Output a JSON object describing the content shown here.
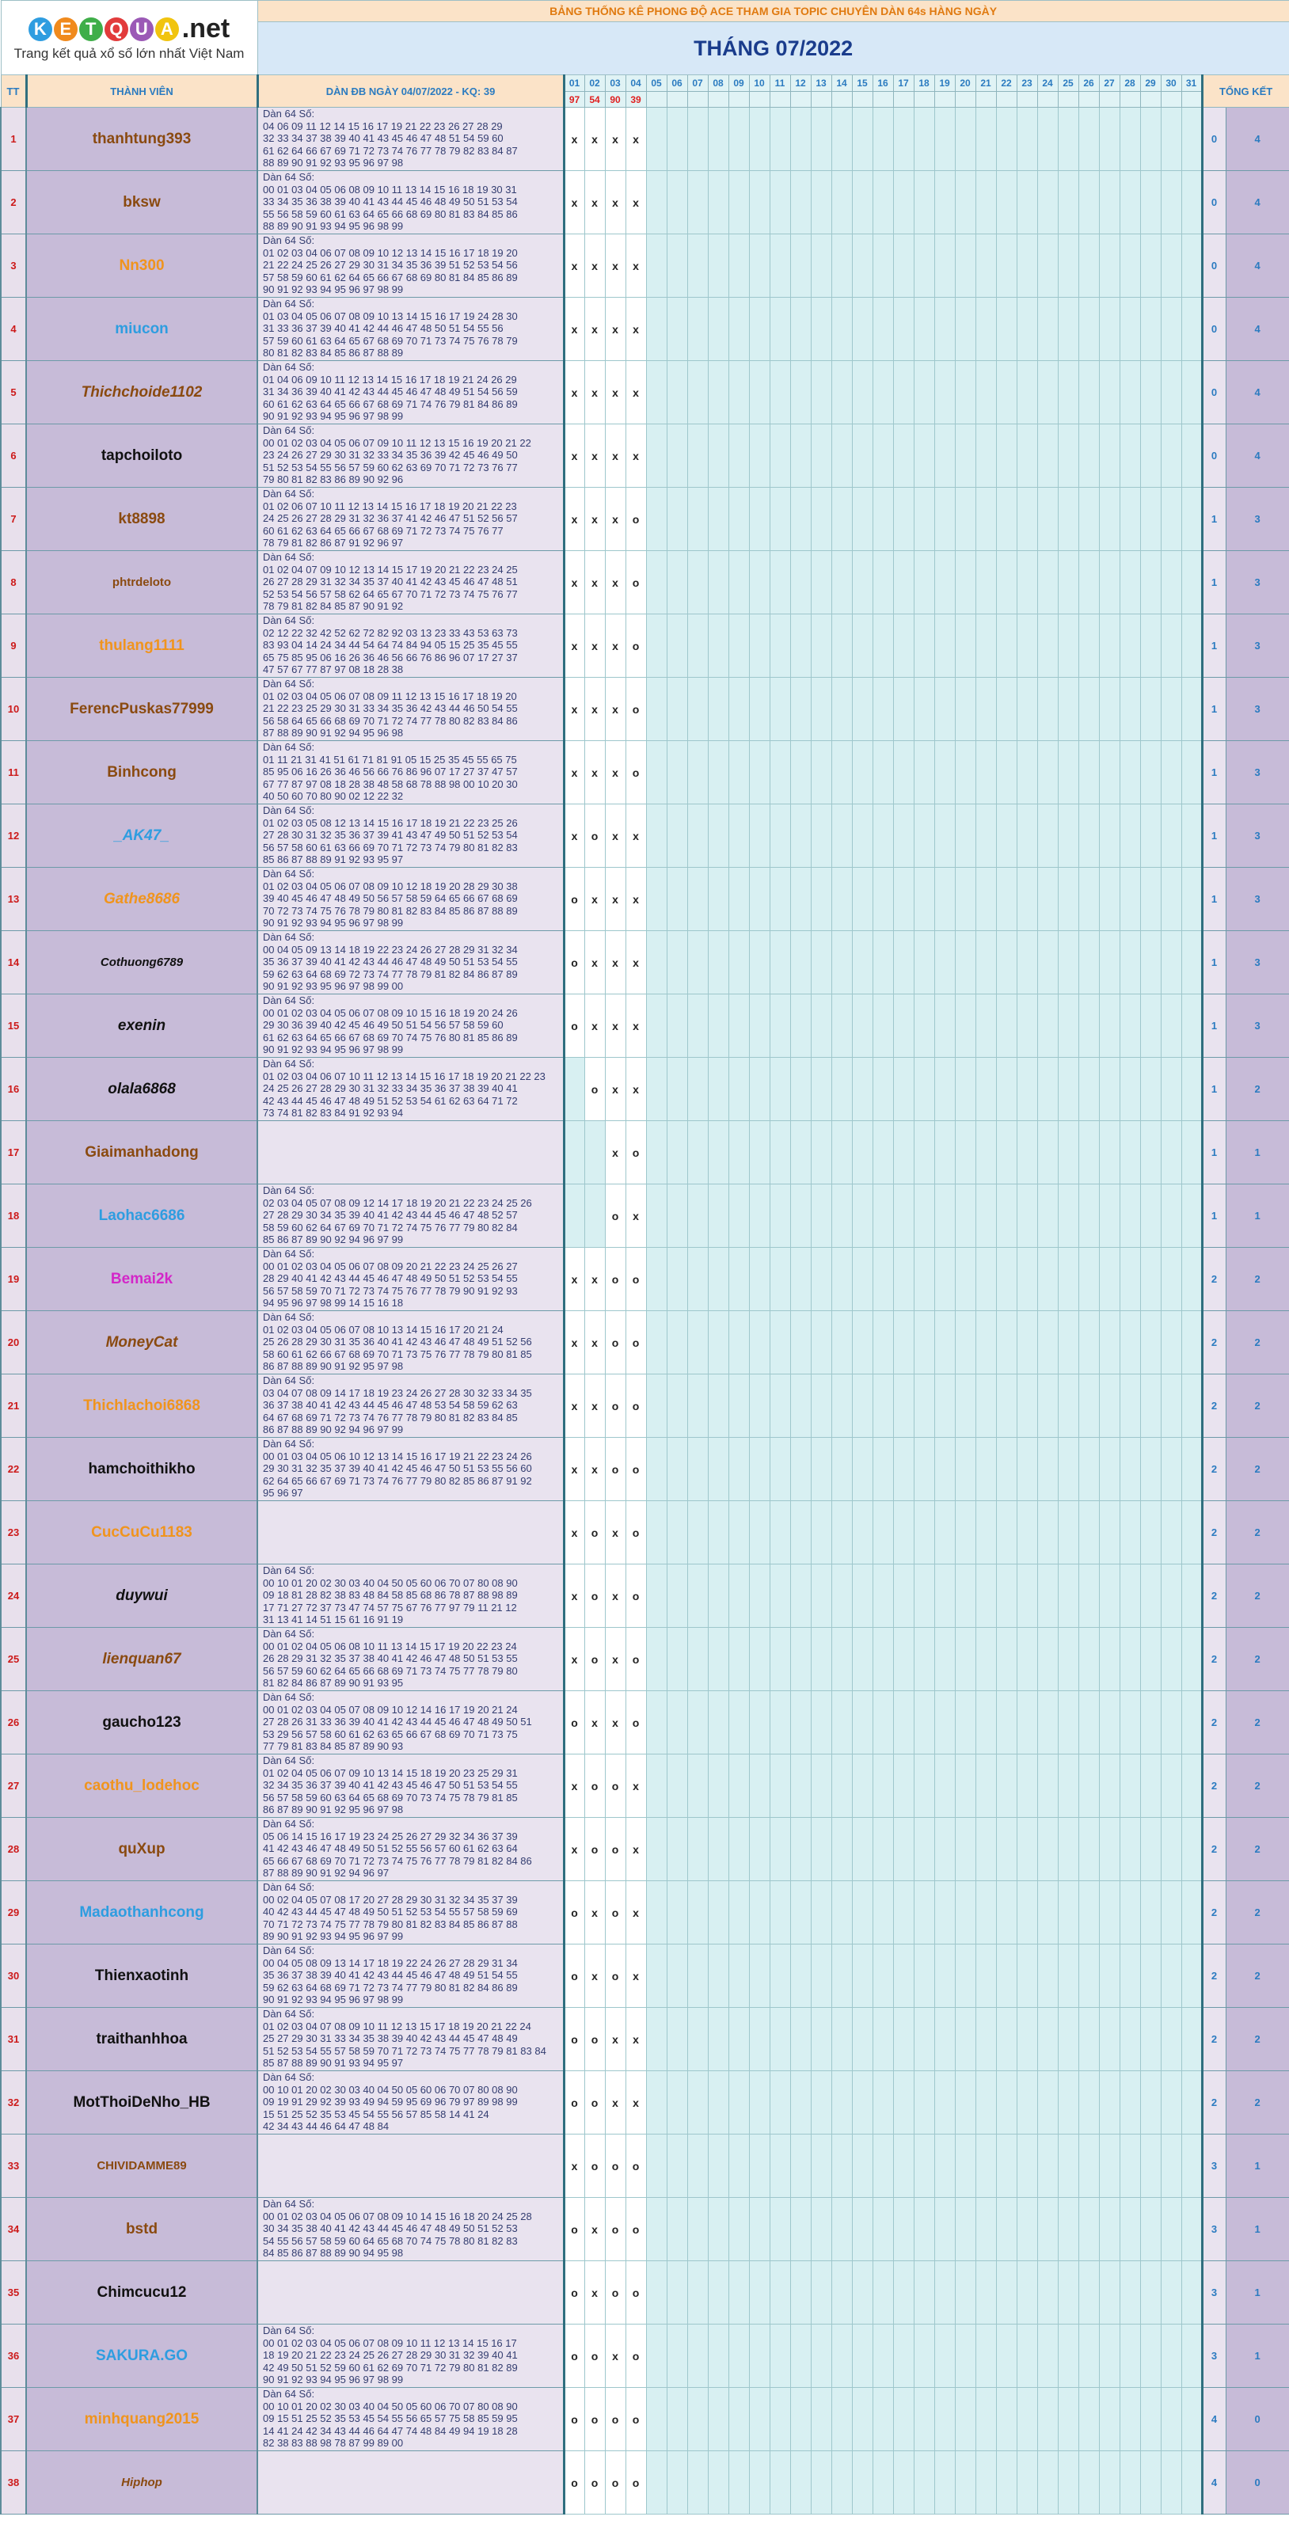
{
  "site": {
    "logo_letters": [
      "K",
      "E",
      "T",
      "Q",
      "U",
      "A"
    ],
    "logo_colors": [
      "#2e9de0",
      "#f08a1d",
      "#3fae49",
      "#e23b3b",
      "#9b59b6",
      "#f1c40f"
    ],
    "logo_suffix": ".net",
    "tagline": "Trang kết quả xổ số lớn nhất Việt Nam"
  },
  "header": {
    "banner": "BẢNG THỐNG KÊ PHONG ĐỘ ACE THAM GIA TOPIC CHUYÊN DÀN 64s HÀNG NGÀY",
    "month_title": "THÁNG 07/2022",
    "col_tt": "TT",
    "col_member": "THÀNH VIÊN",
    "col_dan": "DÀN ĐB NGÀY 04/07/2022 - KQ: 39",
    "col_total": "TỔNG KẾT",
    "days": [
      "01",
      "02",
      "03",
      "04",
      "05",
      "06",
      "07",
      "08",
      "09",
      "10",
      "11",
      "12",
      "13",
      "14",
      "15",
      "16",
      "17",
      "18",
      "19",
      "20",
      "21",
      "22",
      "23",
      "24",
      "25",
      "26",
      "27",
      "28",
      "29",
      "30",
      "31"
    ],
    "results": [
      "97",
      "54",
      "90",
      "39"
    ]
  },
  "rows": [
    {
      "tt": "1",
      "name": "thanhtung393",
      "color": "#8a4a10",
      "italic": false,
      "size": 19,
      "dan": [
        "Dàn 64 Số:",
        "04 06 09 11 12 14 15 16 17 19 21 22 23 26 27 28 29",
        "32 33 34 37 38 39 40 41 43 45 46 47 48 51 54 59 60",
        "61 62 64 66 67 69 71 72 73 74 76 77 78 79 82 83 84 87",
        "88 89 90 91 92 93 95 96 97 98"
      ],
      "marks": [
        "x",
        "x",
        "x",
        "x"
      ],
      "t1": "0",
      "t2": "4"
    },
    {
      "tt": "2",
      "name": "bksw",
      "color": "#8a4a10",
      "italic": false,
      "size": 19,
      "dan": [
        "Dàn 64 Số:",
        "00 01 03 04 05 06 08 09 10 11 13 14 15 16 18 19 30 31",
        "33 34 35 36 38 39 40 41 43 44 45 46 48 49 50 51 53 54",
        "55 56 58 59 60 61 63 64 65 66 68 69 80 81 83 84 85 86",
        "88 89 90 91 93 94 95 96 98 99"
      ],
      "marks": [
        "x",
        "x",
        "x",
        "x"
      ],
      "t1": "0",
      "t2": "4"
    },
    {
      "tt": "3",
      "name": "Nn300",
      "color": "#f0941d",
      "italic": false,
      "size": 19,
      "dan": [
        "Dàn 64 Số:",
        "01 02 03 04 06 07 08 09 10 12 13 14 15 16 17 18 19 20",
        "21 22 24 25 26 27 29 30 31 34 35 36 39 51 52 53 54 56",
        "57 58 59 60 61 62 64 65 66 67 68 69 80 81 84 85 86 89",
        "90 91 92 93 94 95 96 97 98 99"
      ],
      "marks": [
        "x",
        "x",
        "x",
        "x"
      ],
      "t1": "0",
      "t2": "4"
    },
    {
      "tt": "4",
      "name": "miucon",
      "color": "#2e9de0",
      "italic": false,
      "size": 19,
      "dan": [
        "Dàn 64 Số:",
        "01 03 04 05 06 07 08 09 10 13 14 15 16 17 19 24 28 30",
        "31 33 36 37 39 40 41 42 44 46 47 48 50 51 54 55 56",
        "57 59 60 61 63 64 65 67 68 69 70 71 73 74 75 76 78 79",
        "80 81 82 83 84 85 86 87 88 89"
      ],
      "marks": [
        "x",
        "x",
        "x",
        "x"
      ],
      "t1": "0",
      "t2": "4"
    },
    {
      "tt": "5",
      "name": "Thichchoide1102",
      "color": "#8a4a10",
      "italic": true,
      "size": 19,
      "dan": [
        "Dàn 64 Số:",
        "01 04 06 09 10 11 12 13 14 15 16 17 18 19 21 24 26 29",
        "31 34 36 39 40 41 42 43 44 45 46 47 48 49 51 54 56 59",
        "60 61 62 63 64 65 66 67 68 69 71 74 76 79 81 84 86 89",
        "90 91 92 93 94 95 96 97 98 99"
      ],
      "marks": [
        "x",
        "x",
        "x",
        "x"
      ],
      "t1": "0",
      "t2": "4"
    },
    {
      "tt": "6",
      "name": "tapchoiloto",
      "color": "#111111",
      "italic": false,
      "size": 19,
      "dan": [
        "Dàn 64 Số:",
        "00 01 02 03 04 05 06 07 09 10 11 12 13 15 16 19 20 21 22",
        "23 24 26 27 29 30 31 32 33 34 35 36 39 42 45 46 49 50",
        "51 52 53 54 55 56 57 59 60 62 63 69 70 71 72 73 76 77",
        "79 80 81 82 83 86 89 90 92 96"
      ],
      "marks": [
        "x",
        "x",
        "x",
        "x"
      ],
      "t1": "0",
      "t2": "4"
    },
    {
      "tt": "7",
      "name": "kt8898",
      "color": "#8a4a10",
      "italic": false,
      "size": 19,
      "dan": [
        "Dàn 64 Số:",
        "01 02 06 07 10 11 12 13 14 15 16 17 18 19 20 21 22 23",
        "24 25 26 27 28 29 31 32 36 37 41 42 46 47 51 52 56 57",
        "60 61 62 63 64 65 66 67 68 69 71 72 73 74 75 76 77",
        "78 79 81 82 86 87 91 92 96 97"
      ],
      "marks": [
        "x",
        "x",
        "x",
        "o"
      ],
      "t1": "1",
      "t2": "3"
    },
    {
      "tt": "8",
      "name": "phtrdeloto",
      "color": "#8a4a10",
      "italic": false,
      "size": 15,
      "dan": [
        "Dàn 64 Số:",
        "01 02 04 07 09 10 12 13 14 15 17 19 20 21 22 23 24 25",
        "26 27 28 29 31 32 34 35 37 40 41 42 43 45 46 47 48 51",
        "52 53 54 56 57 58 62 64 65 67 70 71 72 73 74 75 76 77",
        "78 79 81 82 84 85 87 90 91 92"
      ],
      "marks": [
        "x",
        "x",
        "x",
        "o"
      ],
      "t1": "1",
      "t2": "3"
    },
    {
      "tt": "9",
      "name": "thulang1111",
      "color": "#f0941d",
      "italic": false,
      "size": 19,
      "dan": [
        "Dàn 64 Số:",
        "02 12 22 32 42 52 62 72 82 92 03 13 23 33 43 53 63 73",
        "83 93 04 14 24 34 44 54 64 74 84 94 05 15 25 35 45 55",
        "65 75 85 95 06 16 26 36 46 56 66 76 86 96 07 17 27 37",
        "47 57 67 77 87 97 08 18 28 38"
      ],
      "marks": [
        "x",
        "x",
        "x",
        "o"
      ],
      "t1": "1",
      "t2": "3"
    },
    {
      "tt": "10",
      "name": "FerencPuskas77999",
      "color": "#8a4a10",
      "italic": false,
      "size": 19,
      "dan": [
        "Dàn 64 Số:",
        "01 02 03 04 05 06 07 08 09 11 12 13 15 16 17 18 19 20",
        "21 22 23 25 29 30 31 33 34 35 36 42 43 44 46 50 54 55",
        "56 58 64 65 66 68 69 70 71 72 74 77 78 80 82 83 84 86",
        "87 88 89 90 91 92 94 95 96 98"
      ],
      "marks": [
        "x",
        "x",
        "x",
        "o"
      ],
      "t1": "1",
      "t2": "3"
    },
    {
      "tt": "11",
      "name": "Binhcong",
      "color": "#8a4a10",
      "italic": false,
      "size": 19,
      "dan": [
        "Dàn 64 Số:",
        "01 11 21 31 41 51 61 71 81 91 05 15 25 35 45 55 65 75",
        "85 95 06 16 26 36 46 56 66 76 86 96 07 17 27 37 47 57",
        "67 77 87 97 08 18 28 38 48 58 68 78 88 98 00 10 20 30",
        "40 50 60 70 80 90 02 12 22 32"
      ],
      "marks": [
        "x",
        "x",
        "x",
        "o"
      ],
      "t1": "1",
      "t2": "3"
    },
    {
      "tt": "12",
      "name": "_AK47_",
      "color": "#2e9de0",
      "italic": true,
      "size": 19,
      "dan": [
        "Dàn 64 Số:",
        "01 02 03 05 08 12 13 14 15 16 17 18 19 21 22 23 25 26",
        "27 28 30 31 32 35 36 37 39 41 43 47 49 50 51 52 53 54",
        "56 57 58 60 61 63 66 69 70 71 72 73 74 79 80 81 82 83",
        "85 86 87 88 89 91 92 93 95 97"
      ],
      "marks": [
        "x",
        "o",
        "x",
        "x"
      ],
      "t1": "1",
      "t2": "3"
    },
    {
      "tt": "13",
      "name": "Gathe8686",
      "color": "#f0941d",
      "italic": true,
      "size": 19,
      "dan": [
        "Dàn 64 Số:",
        "01 02 03 04 05 06 07 08 09 10 12 18 19 20 28 29 30 38",
        "39 40 45 46 47 48 49 50 56 57 58 59 64 65 66 67 68 69",
        "70 72 73 74 75 76 78 79 80 81 82 83 84 85 86 87 88 89",
        "90 91 92 93 94 95 96 97 98 99"
      ],
      "marks": [
        "o",
        "x",
        "x",
        "x"
      ],
      "t1": "1",
      "t2": "3"
    },
    {
      "tt": "14",
      "name": "Cothuong6789",
      "color": "#111111",
      "italic": true,
      "size": 15,
      "dan": [
        "Dàn 64 Số:",
        "00 04 05 09 13 14 18 19 22 23 24 26 27 28 29 31 32 34",
        "35 36 37 39 40 41 42 43 44 46 47 48 49 50 51 53 54 55",
        "59 62 63 64 68 69 72 73 74 77 78 79 81 82 84 86 87 89",
        "90 91 92 93 95 96 97 98 99 00"
      ],
      "marks": [
        "o",
        "x",
        "x",
        "x"
      ],
      "t1": "1",
      "t2": "3"
    },
    {
      "tt": "15",
      "name": "exenin",
      "color": "#111111",
      "italic": true,
      "size": 19,
      "dan": [
        "Dàn 64 Số:",
        "00 01 02 03 04 05 06 07 08 09 10 15 16 18 19 20 24 26",
        "29 30 36 39 40 42 45 46 49 50 51 54 56 57 58 59 60",
        "61 62 63 64 65 66 67 68 69 70 74 75 76 80 81 85 86 89",
        "90 91 92 93 94 95 96 97 98 99"
      ],
      "marks": [
        "o",
        "x",
        "x",
        "x"
      ],
      "t1": "1",
      "t2": "3"
    },
    {
      "tt": "16",
      "name": "olala6868",
      "color": "#111111",
      "italic": true,
      "size": 19,
      "dan": [
        "Dàn 64 Số:",
        "01 02 03 04 06 07 10 11 12 13 14 15 16 17 18 19 20 21 22 23",
        "24 25 26 27 28 29 30 31 32 33 34 35 36 37 38 39 40 41",
        "42 43 44 45 46 47 48 49 51 52 53 54 61 62 63 64 71 72",
        "73 74 81 82 83 84 91 92 93 94"
      ],
      "marks": [
        "",
        "o",
        "x",
        "x"
      ],
      "t1": "1",
      "t2": "2"
    },
    {
      "tt": "17",
      "name": "Giaimanhadong",
      "color": "#8a4a10",
      "italic": false,
      "size": 19,
      "dan": [],
      "marks": [
        "",
        "",
        "x",
        "o"
      ],
      "t1": "1",
      "t2": "1"
    },
    {
      "tt": "18",
      "name": "Laohac6686",
      "color": "#2e9de0",
      "italic": false,
      "size": 19,
      "dan": [
        "Dàn 64 Số:",
        "02 03 04 05 07 08 09 12 14 17 18 19 20 21 22 23 24 25 26",
        "27 28 29 30 34 35 39 40 41 42 43 44 45 46 47 48 52 57",
        "58 59 60 62 64 67 69 70 71 72 74 75 76 77 79 80 82 84",
        "85 86 87 89 90 92 94 96 97 99"
      ],
      "marks": [
        "",
        "",
        "o",
        "x"
      ],
      "t1": "1",
      "t2": "1"
    },
    {
      "tt": "19",
      "name": "Bemai2k",
      "color": "#d326c8",
      "italic": false,
      "size": 19,
      "dan": [
        "Dàn 64 Số:",
        "00 01 02 03 04 05 06 07 08 09 20 21 22 23 24 25 26 27",
        "28 29 40 41 42 43 44 45 46 47 48 49 50 51 52 53 54 55",
        "56 57 58 59 70 71 72 73 74 75 76 77 78 79 90 91 92 93",
        "94 95 96 97 98 99 14 15 16 18"
      ],
      "marks": [
        "x",
        "x",
        "o",
        "o"
      ],
      "t1": "2",
      "t2": "2"
    },
    {
      "tt": "20",
      "name": "MoneyCat",
      "color": "#8a4a10",
      "italic": true,
      "size": 19,
      "dan": [
        "Dàn 64 Số:",
        "01 02 03 04 05 06 07 08 10 13 14 15 16 17 20 21 24",
        "25 26 28 29 30 31 35 36 40 41 42 43 46 47 48 49 51 52 56",
        "58 60 61 62 66 67 68 69 70 71 73 75 76 77 78 79 80 81 85",
        "86 87 88 89 90 91 92 95 97 98"
      ],
      "marks": [
        "x",
        "x",
        "o",
        "o"
      ],
      "t1": "2",
      "t2": "2"
    },
    {
      "tt": "21",
      "name": "Thichlachoi6868",
      "color": "#f0941d",
      "italic": false,
      "size": 19,
      "dan": [
        "Dàn 64 Số:",
        "03 04 07 08 09 14 17 18 19 23 24 26 27 28 30 32 33 34 35",
        "36 37 38 40 41 42 43 44 45 46 47 48 53 54 58 59 62 63",
        "64 67 68 69 71 72 73 74 76 77 78 79 80 81 82 83 84 85",
        "86 87 88 89 90 92 94 96 97 99"
      ],
      "marks": [
        "x",
        "x",
        "o",
        "o"
      ],
      "t1": "2",
      "t2": "2"
    },
    {
      "tt": "22",
      "name": "hamchoithikho",
      "color": "#111111",
      "italic": false,
      "size": 19,
      "dan": [
        "Dàn 64 Số:",
        "00 01 03 04 05 06 10 12 13 14 15 16 17 19 21 22 23 24 26",
        "29 30 31 32 35 37 39 40 41 42 45 46 47 50 51 53 55 56 60",
        "62 64 65 66 67 69 71 73 74 76 77 79 80 82 85 86 87 91 92",
        "95 96 97"
      ],
      "marks": [
        "x",
        "x",
        "o",
        "o"
      ],
      "t1": "2",
      "t2": "2"
    },
    {
      "tt": "23",
      "name": "CucCuCu1183",
      "color": "#f0941d",
      "italic": false,
      "size": 19,
      "dan": [],
      "marks": [
        "x",
        "o",
        "x",
        "o"
      ],
      "t1": "2",
      "t2": "2"
    },
    {
      "tt": "24",
      "name": "duywui",
      "color": "#111111",
      "italic": true,
      "size": 19,
      "dan": [
        "Dàn 64 Số:",
        "00 10 01 20 02 30 03 40 04 50 05 60 06 70 07 80 08 90",
        "09 18 81 28 82 38 83 48 84 58 85 68 86 78 87 88 98 89",
        "17 71 27 72 37 73 47 74 57 75 67 76 77 97 79 11 21 12",
        "31 13 41 14 51 15 61 16 91 19"
      ],
      "marks": [
        "x",
        "o",
        "x",
        "o"
      ],
      "t1": "2",
      "t2": "2"
    },
    {
      "tt": "25",
      "name": "lienquan67",
      "color": "#8a4a10",
      "italic": true,
      "size": 19,
      "dan": [
        "Dàn 64 Số:",
        "00 01 02 04 05 06 08 10 11 13 14 15 17 19 20 22 23 24",
        "26 28 29 31 32 35 37 38 40 41 42 46 47 48 50 51 53 55",
        "56 57 59 60 62 64 65 66 68 69 71 73 74 75 77 78 79 80",
        "81 82 84 86 87 89 90 91 93 95"
      ],
      "marks": [
        "x",
        "o",
        "x",
        "o"
      ],
      "t1": "2",
      "t2": "2"
    },
    {
      "tt": "26",
      "name": "gaucho123",
      "color": "#111111",
      "italic": false,
      "size": 19,
      "dan": [
        "Dàn 64 Số:",
        "00 01 02 03 04 05 07 08 09 10 12 14 16 17 19 20 21 24",
        "27 28 26 31 33 36 39 40 41 42 43 44 45 46 47 48 49 50 51",
        "53 29 56 57 58 60 61 62 63 65 66 67 68 69 70 71 73 75",
        "77 79 81 83 84 85 87 89 90 93"
      ],
      "marks": [
        "o",
        "x",
        "x",
        "o"
      ],
      "t1": "2",
      "t2": "2"
    },
    {
      "tt": "27",
      "name": "caothu_lodehoc",
      "color": "#f0941d",
      "italic": false,
      "size": 19,
      "dan": [
        "Dàn 64 Số:",
        "01 02 04 05 06 07 09 10 13 14 15 18 19 20 23 25 29 31",
        "32 34 35 36 37 39 40 41 42 43 45 46 47 50 51 53 54 55",
        "56 57 58 59 60 63 64 65 68 69 70 73 74 75 78 79 81 85",
        "86 87 89 90 91 92 95 96 97 98"
      ],
      "marks": [
        "x",
        "o",
        "o",
        "x"
      ],
      "t1": "2",
      "t2": "2"
    },
    {
      "tt": "28",
      "name": "quXup",
      "color": "#8a4a10",
      "italic": false,
      "size": 19,
      "dan": [
        "Dàn 64 Số:",
        "05 06 14 15 16 17 19 23 24 25 26 27 29 32 34 36 37 39",
        "41 42 43 46 47 48 49 50 51 52 55 56 57 60 61 62 63 64",
        "65 66 67 68 69 70 71 72 73 74 75 76 77 78 79 81 82 84 86",
        "87 88 89 90 91 92 94 96 97"
      ],
      "marks": [
        "x",
        "o",
        "o",
        "x"
      ],
      "t1": "2",
      "t2": "2"
    },
    {
      "tt": "29",
      "name": "Madaothanhcong",
      "color": "#2e9de0",
      "italic": false,
      "size": 19,
      "dan": [
        "Dàn 64 Số:",
        "00 02 04 05 07 08 17 20 27 28 29 30 31 32 34 35 37 39",
        "40 42 43 44 45 47 48 49 50 51 52 53 54 55 57 58 59 69",
        "70 71 72 73 74 75 77 78 79 80 81 82 83 84 85 86 87 88",
        "89 90 91 92 93 94 95 96 97 99"
      ],
      "marks": [
        "o",
        "x",
        "o",
        "x"
      ],
      "t1": "2",
      "t2": "2"
    },
    {
      "tt": "30",
      "name": "Thienxaotinh",
      "color": "#111111",
      "italic": false,
      "size": 19,
      "dan": [
        "Dàn 64 Số:",
        "00 04 05 08 09 13 14 17 18 19 22 24 26 27 28 29 31 34",
        "35 36 37 38 39 40 41 42 43 44 45 46 47 48 49 51 54 55",
        "59 62 63 64 68 69 71 72 73 74 77 79 80 81 82 84 86 89",
        "90 91 92 93 94 95 96 97 98 99"
      ],
      "marks": [
        "o",
        "x",
        "o",
        "x"
      ],
      "t1": "2",
      "t2": "2"
    },
    {
      "tt": "31",
      "name": "traithanhhoa",
      "color": "#111111",
      "italic": false,
      "size": 19,
      "dan": [
        "Dàn 64 Số:",
        "01 02 03 04 07 08 09 10 11 12 13 15 17 18 19 20 21 22 24",
        "25 27 29 30 31 33 34 35 38 39 40 42 43 44 45 47 48 49",
        "51 52 53 54 55 57 58 59 70 71 72 73 74 75 77 78 79 81 83 84",
        "85 87 88 89 90 91 93 94 95 97"
      ],
      "marks": [
        "o",
        "o",
        "x",
        "x"
      ],
      "t1": "2",
      "t2": "2"
    },
    {
      "tt": "32",
      "name": "MotThoiDeNho_HB",
      "color": "#111111",
      "italic": false,
      "size": 19,
      "dan": [
        "Dàn 64 Số:",
        "00 10 01 20 02 30 03 40 04 50 05 60 06 70 07 80 08 90",
        "09 19 91 29 92 39 93 49 94 59 95 69 96 79 97 89 98 99",
        "15 51 25 52 35 53 45 54 55 56 57 85 58 14 41 24",
        "42 34 43 44 46 64 47 48 84"
      ],
      "marks": [
        "o",
        "o",
        "x",
        "x"
      ],
      "t1": "2",
      "t2": "2"
    },
    {
      "tt": "33",
      "name": "CHIVIDAMME89",
      "color": "#8a4a10",
      "italic": false,
      "size": 15,
      "dan": [],
      "marks": [
        "x",
        "o",
        "o",
        "o"
      ],
      "t1": "3",
      "t2": "1"
    },
    {
      "tt": "34",
      "name": "bstd",
      "color": "#8a4a10",
      "italic": false,
      "size": 19,
      "dan": [
        "Dàn 64 Số:",
        "00 01 02 03 04 05 06 07 08 09 10 14 15 16 18 20 24 25 28",
        "30 34 35 38 40 41 42 43 44 45 46 47 48 49 50 51 52 53",
        "54 55 56 57 58 59 60 64 65 68 70 74 75 78 80 81 82 83",
        "84 85 86 87 88 89 90 94 95 98"
      ],
      "marks": [
        "o",
        "x",
        "o",
        "o"
      ],
      "t1": "3",
      "t2": "1"
    },
    {
      "tt": "35",
      "name": "Chimcucu12",
      "color": "#111111",
      "italic": false,
      "size": 19,
      "dan": [],
      "marks": [
        "o",
        "x",
        "o",
        "o"
      ],
      "t1": "3",
      "t2": "1"
    },
    {
      "tt": "36",
      "name": "SAKURA.GO",
      "color": "#2e9de0",
      "italic": false,
      "size": 19,
      "dan": [
        "Dàn 64 Số:",
        "00 01 02 03 04 05 06 07 08 09 10 11 12 13 14 15 16 17",
        "18 19 20 21 22 23 24 25 26 27 28 29 30 31 32 39 40 41",
        "42 49 50 51 52 59 60 61 62 69 70 71 72 79 80 81 82 89",
        "90 91 92 93 94 95 96 97 98 99"
      ],
      "marks": [
        "o",
        "o",
        "x",
        "o"
      ],
      "t1": "3",
      "t2": "1"
    },
    {
      "tt": "37",
      "name": "minhquang2015",
      "color": "#f0941d",
      "italic": false,
      "size": 19,
      "dan": [
        "Dàn 64 Số:",
        "00 10 01 20 02 30 03 40 04 50 05 60 06 70 07 80 08 90",
        "09 15 51 25 52 35 53 45 54 55 56 65 57 75 58 85 59 95",
        "14 41 24 42 34 43 44 46 64 47 74 48 84 49 94 19 18 28",
        "82 38 83 88 98 78 87 99 89 00"
      ],
      "marks": [
        "o",
        "o",
        "o",
        "o"
      ],
      "t1": "4",
      "t2": "0"
    },
    {
      "tt": "38",
      "name": "Hiphop",
      "color": "#8a4a10",
      "italic": true,
      "size": 15,
      "dan": [],
      "marks": [
        "o",
        "o",
        "o",
        "o"
      ],
      "t1": "4",
      "t2": "0"
    }
  ]
}
